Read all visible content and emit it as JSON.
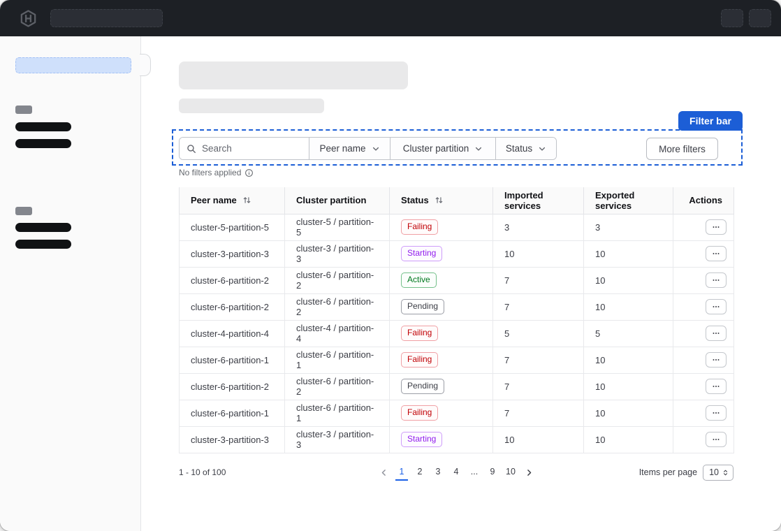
{
  "colors": {
    "annotation_blue": "#1c5ed6",
    "link_blue": "#1c61e7",
    "topnav_bg": "#1d2025",
    "status": {
      "Failing": {
        "text": "#c00005",
        "variant": "critical"
      },
      "Starting": {
        "text": "#911ced",
        "variant": "highlight"
      },
      "Active": {
        "text": "#00781e",
        "variant": "success"
      },
      "Pending": {
        "text": "#3b3d45",
        "variant": "neutral"
      }
    }
  },
  "annotation": {
    "label": "Filter bar"
  },
  "filter_bar": {
    "search_placeholder": "Search",
    "dropdowns": [
      "Peer name",
      "Cluster partition",
      "Status"
    ],
    "more_filters_label": "More filters",
    "no_filters_text": "No filters applied"
  },
  "table": {
    "columns": [
      {
        "label": "Peer name",
        "sortable": true
      },
      {
        "label": "Cluster partition",
        "sortable": false
      },
      {
        "label": "Status",
        "sortable": true
      },
      {
        "label": "Imported services",
        "sortable": false
      },
      {
        "label": "Exported services",
        "sortable": false
      },
      {
        "label": "Actions",
        "sortable": false
      }
    ],
    "rows": [
      {
        "peer": "cluster-5-partition-5",
        "partition": "cluster-5 / partition-5",
        "status": "Failing",
        "imported": "3",
        "exported": "3"
      },
      {
        "peer": "cluster-3-partition-3",
        "partition": "cluster-3 / partition-3",
        "status": "Starting",
        "imported": "10",
        "exported": "10"
      },
      {
        "peer": "cluster-6-partition-2",
        "partition": "cluster-6 / partition-2",
        "status": "Active",
        "imported": "7",
        "exported": "10"
      },
      {
        "peer": "cluster-6-partition-2",
        "partition": "cluster-6 / partition-2",
        "status": "Pending",
        "imported": "7",
        "exported": "10"
      },
      {
        "peer": "cluster-4-partition-4",
        "partition": "cluster-4 / partition-4",
        "status": "Failing",
        "imported": "5",
        "exported": "5"
      },
      {
        "peer": "cluster-6-partition-1",
        "partition": "cluster-6 / partition-1",
        "status": "Failing",
        "imported": "7",
        "exported": "10"
      },
      {
        "peer": "cluster-6-partition-2",
        "partition": "cluster-6 / partition-2",
        "status": "Pending",
        "imported": "7",
        "exported": "10"
      },
      {
        "peer": "cluster-6-partition-1",
        "partition": "cluster-6 / partition-1",
        "status": "Failing",
        "imported": "7",
        "exported": "10"
      },
      {
        "peer": "cluster-3-partition-3",
        "partition": "cluster-3 / partition-3",
        "status": "Starting",
        "imported": "10",
        "exported": "10"
      }
    ]
  },
  "pagination": {
    "range_text": "1 - 10 of 100",
    "pages": [
      "1",
      "2",
      "3",
      "4",
      "...",
      "9",
      "10"
    ],
    "active_page": "1",
    "items_per_page_label": "Items per page",
    "items_per_page_value": "10"
  },
  "icons": [
    "hashicorp-logo-icon",
    "search-icon",
    "chevron-down-icon",
    "info-icon",
    "sort-arrows-icon",
    "ellipsis-icon",
    "chevron-left-icon",
    "chevron-right-icon",
    "select-carets-icon"
  ]
}
